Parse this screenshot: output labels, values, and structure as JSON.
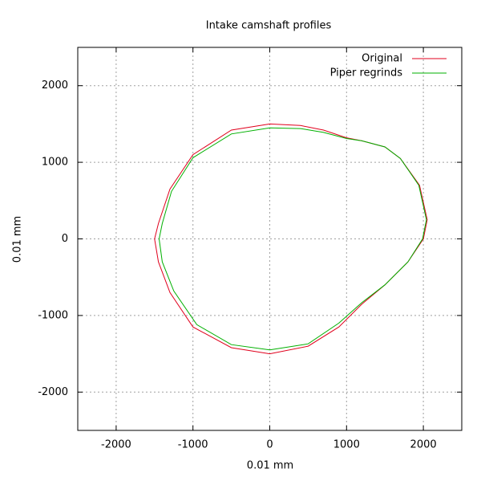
{
  "chart_data": {
    "type": "line",
    "title": "Intake camshaft profiles",
    "x_label": "0.01 mm",
    "y_label": "0.01 mm",
    "xlim": [
      -2500,
      2500
    ],
    "ylim": [
      -2500,
      2500
    ],
    "xticks": [
      -2000,
      -1000,
      0,
      1000,
      2000
    ],
    "yticks": [
      -2000,
      -1000,
      0,
      1000,
      2000
    ],
    "grid": true,
    "legend": "top-right",
    "series": [
      {
        "name": "Original",
        "color": "#e0001c",
        "x": [
          0,
          -500,
          -1000,
          -1300,
          -1450,
          -1500,
          -1450,
          -1300,
          -1000,
          -500,
          0,
          500,
          900,
          1200,
          1500,
          1800,
          2000,
          2050,
          1950,
          1700,
          1500,
          1200,
          1000,
          700,
          400,
          0
        ],
        "values": [
          1500,
          1420,
          1100,
          650,
          200,
          0,
          -300,
          -700,
          -1150,
          -1420,
          -1500,
          -1400,
          -1150,
          -850,
          -600,
          -300,
          0,
          250,
          700,
          1050,
          1200,
          1280,
          1320,
          1420,
          1480,
          1500
        ]
      },
      {
        "name": "Piper regrinds",
        "color": "#00b000",
        "x": [
          0,
          -500,
          -1000,
          -1280,
          -1400,
          -1440,
          -1400,
          -1250,
          -950,
          -500,
          0,
          500,
          900,
          1200,
          1500,
          1800,
          1990,
          2040,
          1940,
          1700,
          1500,
          1200,
          1000,
          700,
          400,
          0
        ],
        "values": [
          1450,
          1370,
          1060,
          620,
          200,
          0,
          -300,
          -680,
          -1120,
          -1380,
          -1450,
          -1370,
          -1100,
          -830,
          -600,
          -300,
          0,
          250,
          700,
          1050,
          1200,
          1280,
          1310,
          1390,
          1440,
          1450
        ]
      }
    ]
  }
}
